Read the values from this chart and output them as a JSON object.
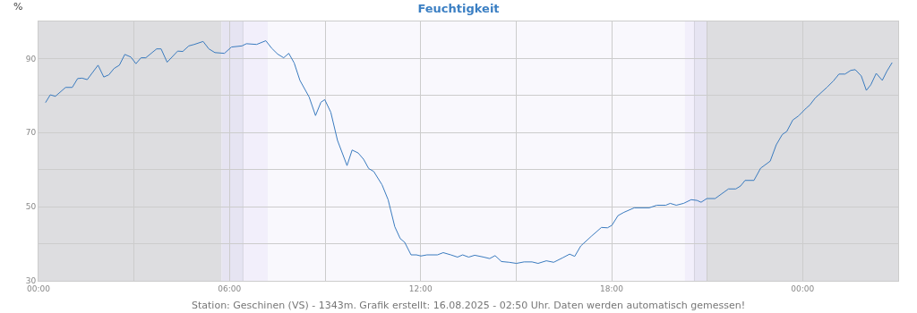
{
  "chart_data": {
    "type": "line",
    "title": "Feuchtigkeit",
    "ylabel": "%",
    "annotations": [
      "Station: Geschinen (VS) - 1343m. Grafik erstellt: 16.08.2025 - 02:50 Uhr. Daten werden automatisch gemessen!"
    ],
    "x": [
      0.22,
      0.37,
      0.53,
      0.85,
      1.06,
      1.23,
      1.37,
      1.53,
      1.87,
      2.05,
      2.21,
      2.37,
      2.54,
      2.71,
      2.9,
      3.06,
      3.22,
      3.37,
      3.71,
      3.85,
      4.04,
      4.37,
      4.53,
      4.72,
      4.89,
      5.17,
      5.35,
      5.54,
      5.84,
      6.06,
      6.39,
      6.53,
      6.85,
      7.14,
      7.32,
      7.51,
      7.7,
      7.86,
      8.03,
      8.21,
      8.5,
      8.7,
      8.87,
      8.99,
      9.18,
      9.39,
      9.69,
      9.85,
      10.04,
      10.21,
      10.37,
      10.53,
      10.79,
      10.98,
      11.19,
      11.36,
      11.5,
      11.7,
      11.87,
      12.01,
      12.2,
      12.53,
      12.71,
      12.95,
      13.16,
      13.32,
      13.51,
      13.7,
      13.98,
      14.17,
      14.34,
      14.54,
      14.78,
      15.01,
      15.25,
      15.5,
      15.69,
      15.95,
      16.18,
      16.46,
      16.68,
      16.84,
      17.03,
      17.36,
      17.68,
      17.87,
      18.01,
      18.2,
      18.39,
      18.71,
      19.18,
      19.42,
      19.7,
      19.84,
      20.03,
      20.26,
      20.5,
      20.68,
      20.81,
      20.99,
      21.25,
      21.67,
      21.9,
      22.05,
      22.19,
      22.47,
      22.68,
      22.98,
      23.17,
      23.36,
      23.5,
      23.69,
      23.87,
      24.11,
      24.22,
      24.39,
      24.76,
      24.97,
      25.14,
      25.33,
      25.51,
      25.65,
      25.84,
      26.0,
      26.14,
      26.31,
      26.5,
      26.64,
      26.81
    ],
    "series": [
      {
        "color": "#3a7bbf",
        "values": [
          78.1,
          80.2,
          79.8,
          82.2,
          82.2,
          84.6,
          84.7,
          84.3,
          88.2,
          85.0,
          85.6,
          87.3,
          88.2,
          91.1,
          90.4,
          88.6,
          90.2,
          90.2,
          92.6,
          92.6,
          89.0,
          92.0,
          91.9,
          93.4,
          93.8,
          94.6,
          92.6,
          91.6,
          91.4,
          93.1,
          93.4,
          94.0,
          93.8,
          94.8,
          92.8,
          91.2,
          90.2,
          91.4,
          88.8,
          84.1,
          79.6,
          74.6,
          78.2,
          78.9,
          75.5,
          67.9,
          61.1,
          65.3,
          64.5,
          62.8,
          60.3,
          59.5,
          55.9,
          51.9,
          44.6,
          41.4,
          40.4,
          37.0,
          37.0,
          36.7,
          37.0,
          37.0,
          37.6,
          37.0,
          36.4,
          37.0,
          36.4,
          36.9,
          36.4,
          36.0,
          36.8,
          35.2,
          35.0,
          34.7,
          35.1,
          35.1,
          34.7,
          35.4,
          35.0,
          36.2,
          37.2,
          36.6,
          39.4,
          42.0,
          44.4,
          44.3,
          45.0,
          47.6,
          48.5,
          49.7,
          49.7,
          50.4,
          50.4,
          50.9,
          50.4,
          50.9,
          51.9,
          51.7,
          51.2,
          52.2,
          52.2,
          54.8,
          54.8,
          55.6,
          57.1,
          57.1,
          60.4,
          62.3,
          66.7,
          69.5,
          70.3,
          73.4,
          74.5,
          76.6,
          77.4,
          79.3,
          82.2,
          84.0,
          85.8,
          85.8,
          86.8,
          87.0,
          85.3,
          81.4,
          82.9,
          86.0,
          84.1,
          86.5,
          88.9
        ]
      }
    ],
    "xlim": [
      0,
      27
    ],
    "xticks": [
      {
        "value": 0,
        "label": "00:00"
      },
      {
        "value": 3,
        "label": null
      },
      {
        "value": 6,
        "label": "06:00"
      },
      {
        "value": 9,
        "label": null
      },
      {
        "value": 12,
        "label": "12:00"
      },
      {
        "value": 15,
        "label": null
      },
      {
        "value": 18,
        "label": "18:00"
      },
      {
        "value": 21,
        "label": null
      },
      {
        "value": 24,
        "label": "00:00"
      }
    ],
    "ylim": [
      30,
      100
    ],
    "yticks": [
      30,
      {
        "value": 40,
        "label": null
      },
      50,
      {
        "value": 60,
        "label": null
      },
      70,
      {
        "value": 80,
        "label": null
      },
      90,
      {
        "value": 100,
        "label": null
      }
    ],
    "bands": [
      {
        "axis": "x",
        "from": 0,
        "to": 5.75,
        "color": "#dddde0"
      },
      {
        "axis": "x",
        "from": 5.75,
        "to": 6.42,
        "color": "#e6e4f2"
      },
      {
        "axis": "x",
        "from": 6.42,
        "to": 7.2,
        "color": "#f2effb"
      },
      {
        "axis": "x",
        "from": 7.2,
        "to": 20.3,
        "color": "#f9f8fd"
      },
      {
        "axis": "x",
        "from": 20.3,
        "to": 20.6,
        "color": "#f2effb"
      },
      {
        "axis": "x",
        "from": 20.6,
        "to": 21.0,
        "color": "#e6e4f2"
      },
      {
        "axis": "x",
        "from": 21.0,
        "to": 27,
        "color": "#dddde0"
      }
    ],
    "ref_lines": [
      {
        "axis": "x",
        "value": 6.42,
        "color": "#d4d2de"
      },
      {
        "axis": "x",
        "value": 20.6,
        "color": "#d4d2de"
      }
    ],
    "grid": true,
    "legend": false,
    "marker": "none",
    "line_style": "solid"
  }
}
